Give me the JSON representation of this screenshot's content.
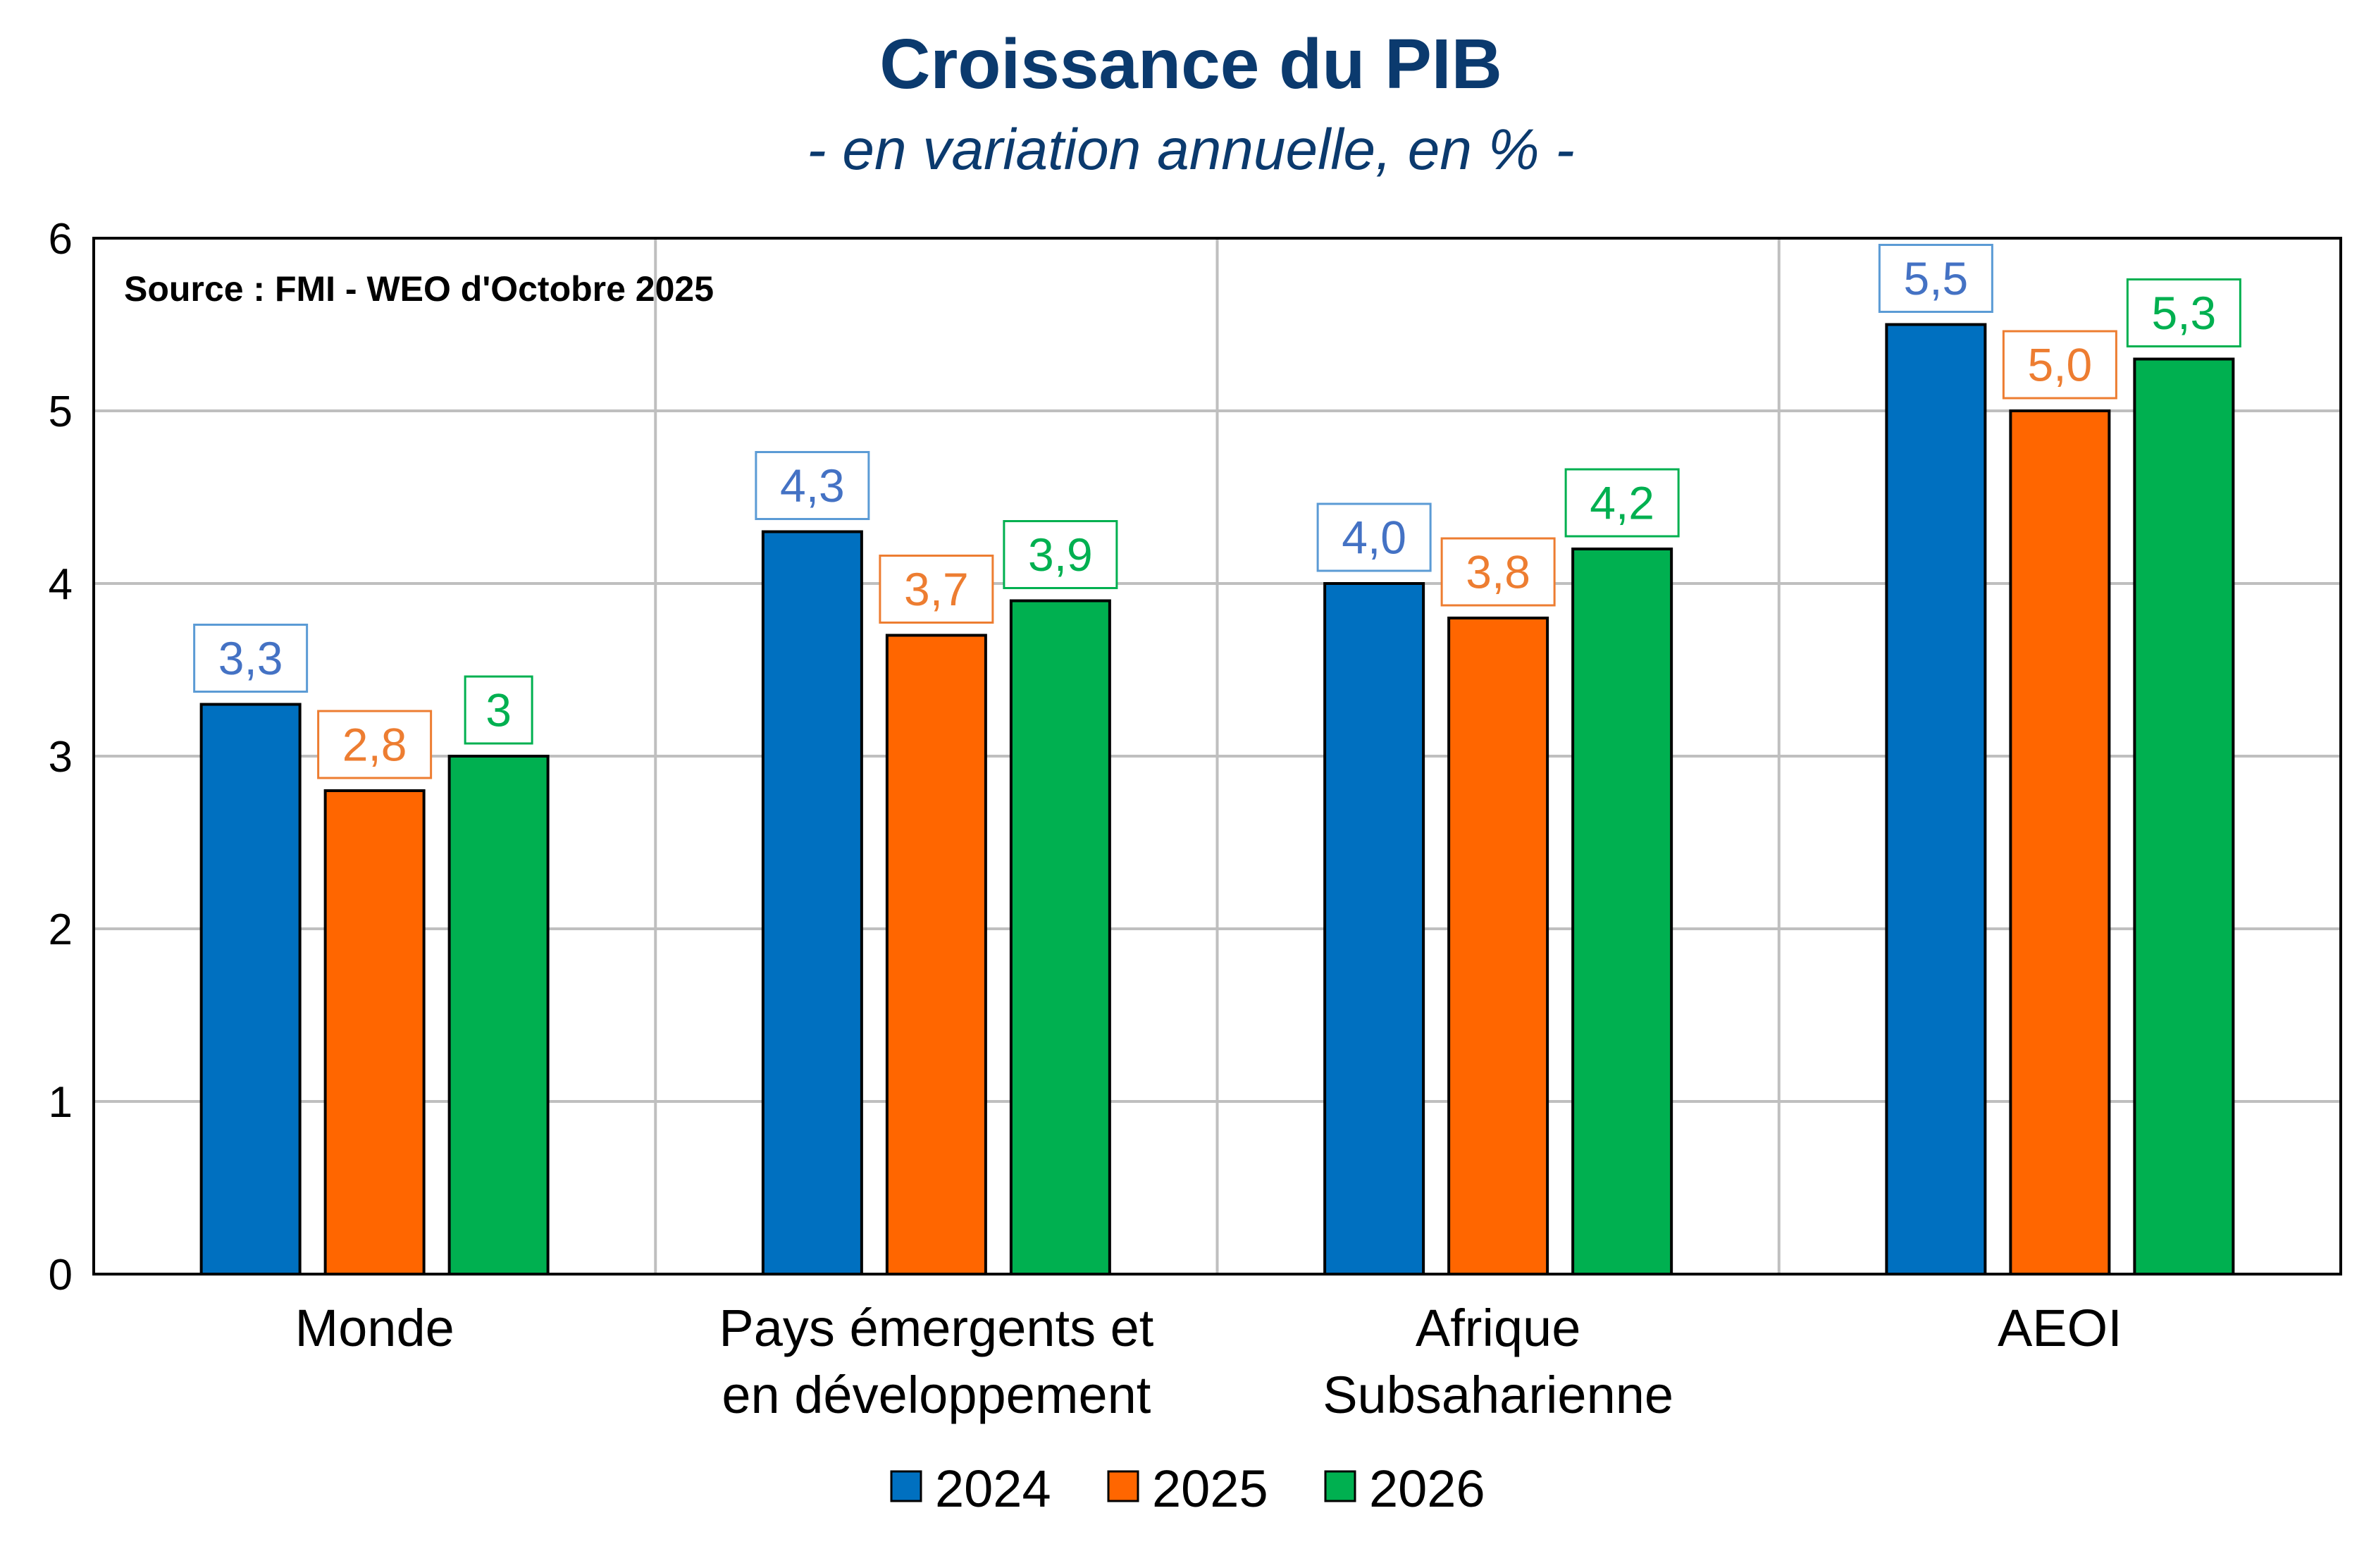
{
  "chart_data": {
    "type": "bar",
    "title": "Croissance du PIB",
    "subtitle": "- en variation annuelle, en % -",
    "annotation": "Source : FMI - WEO d'Octobre 2025",
    "categories": [
      [
        "Monde"
      ],
      [
        "Pays émergents et",
        "en développement"
      ],
      [
        "Afrique",
        "Subsaharienne"
      ],
      [
        "AEOI"
      ]
    ],
    "series": [
      {
        "name": "2024",
        "values": [
          3.3,
          4.3,
          4.0,
          5.5
        ],
        "labels": [
          "3,3",
          "4,3",
          "4,0",
          "5,5"
        ],
        "color": "#0070C0",
        "label_color": "#4472C4",
        "label_border": "#5B9BD5"
      },
      {
        "name": "2025",
        "values": [
          2.8,
          3.7,
          3.8,
          5.0
        ],
        "labels": [
          "2,8",
          "3,7",
          "3,8",
          "5,0"
        ],
        "color": "#FF6600",
        "label_color": "#ED7D31",
        "label_border": "#ED7D31"
      },
      {
        "name": "2026",
        "values": [
          3.0,
          3.9,
          4.2,
          5.3
        ],
        "labels": [
          "3",
          "3,9",
          "4,2",
          "5,3"
        ],
        "color": "#00B050",
        "label_color": "#00B050",
        "label_border": "#00B050"
      }
    ],
    "ylim": [
      0,
      6
    ],
    "yticks": [
      "0",
      "1",
      "2",
      "3",
      "4",
      "5",
      "6"
    ],
    "grid": true,
    "legend": "bottom",
    "title_color": "#0B3A6E"
  }
}
